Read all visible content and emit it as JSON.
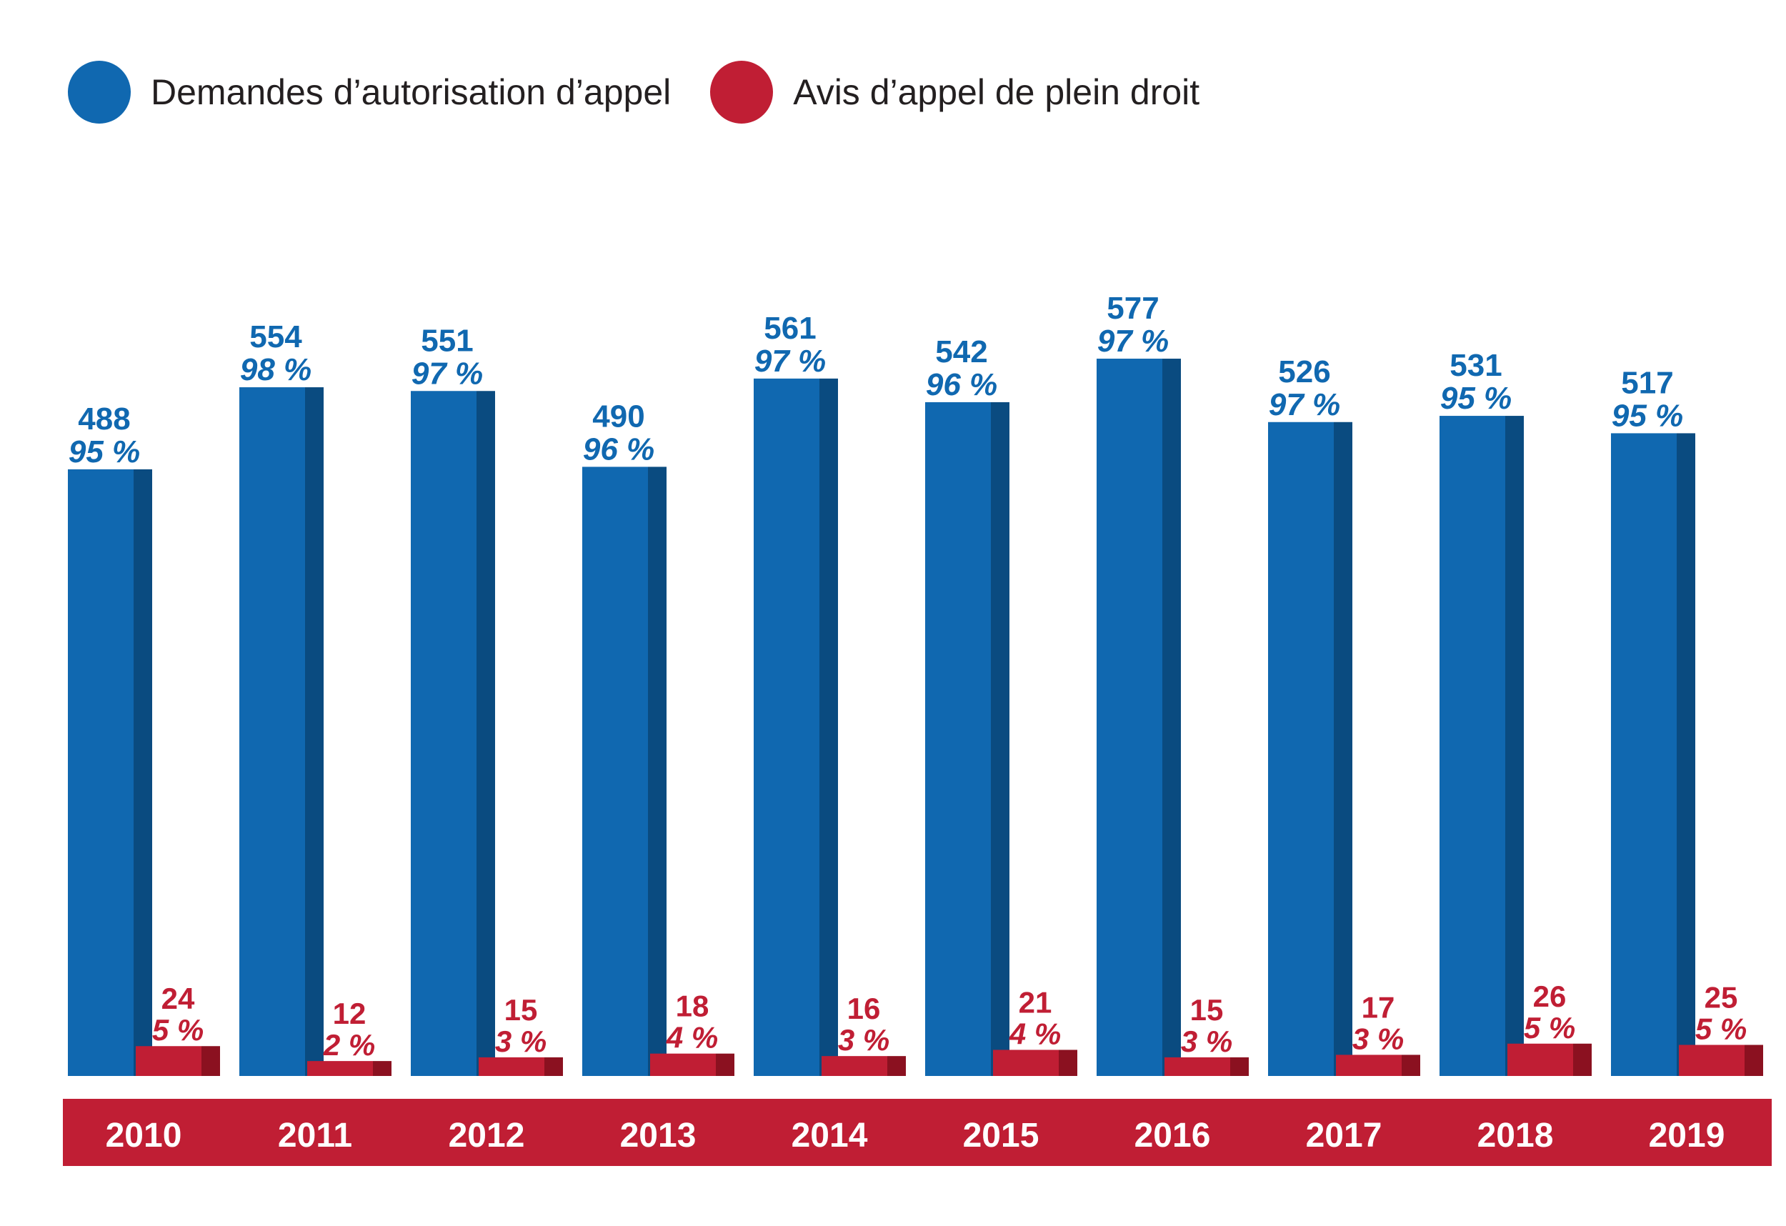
{
  "legend": [
    {
      "label": "Demandes d’autorisation d’appel",
      "color": "#1068b0"
    },
    {
      "label": "Avis d’appel de plein droit",
      "color": "#c01e34"
    }
  ],
  "colors": {
    "blue": "#1068b0",
    "blue_dark": "#0a4b80",
    "red": "#c01e34",
    "red_dark": "#8b1120",
    "axis_band": "#c01e34",
    "year_text": "#ffffff"
  },
  "chart_data": {
    "type": "bar",
    "categories": [
      "2010",
      "2011",
      "2012",
      "2013",
      "2014",
      "2015",
      "2016",
      "2017",
      "2018",
      "2019"
    ],
    "series": [
      {
        "name": "Demandes d’autorisation d’appel",
        "values": [
          488,
          554,
          551,
          490,
          561,
          542,
          577,
          526,
          531,
          517
        ],
        "percent_labels": [
          "95 %",
          "98 %",
          "97 %",
          "96 %",
          "97 %",
          "96 %",
          "97 %",
          "97 %",
          "95 %",
          "95 %"
        ]
      },
      {
        "name": "Avis d’appel de plein droit",
        "values": [
          24,
          12,
          15,
          18,
          16,
          21,
          15,
          17,
          26,
          25
        ],
        "percent_labels": [
          "5 %",
          "2 %",
          "3 %",
          "4 %",
          "3 %",
          "4 %",
          "3 %",
          "3 %",
          "5 %",
          "5 %"
        ]
      }
    ],
    "ylim": [
      0,
      577
    ],
    "grid": false,
    "legend_position": "top-left"
  }
}
